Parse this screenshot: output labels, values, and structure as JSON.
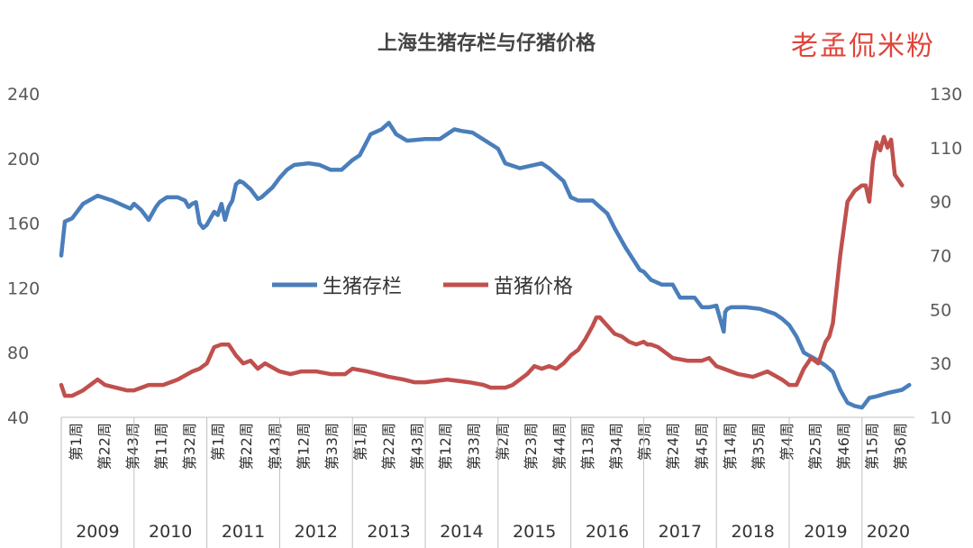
{
  "chart_data": {
    "type": "line",
    "title": "上海生猪存栏与仔猪价格",
    "watermark": "老孟侃米粉",
    "legend_position": "center",
    "y_left": {
      "min": 40,
      "max": 240,
      "ticks": [
        40,
        80,
        120,
        160,
        200,
        240
      ]
    },
    "y_right": {
      "min": 10,
      "max": 130,
      "ticks": [
        10,
        30,
        50,
        70,
        90,
        110,
        130
      ]
    },
    "x_tick_labels": [
      "第1周",
      "第22周",
      "第43周",
      "第11周",
      "第32周",
      "第1周",
      "第22周",
      "第43周",
      "第12周",
      "第33周",
      "第1周",
      "第22周",
      "第43周",
      "第12周",
      "第33周",
      "第2周",
      "第23周",
      "第44周",
      "第13周",
      "第34周",
      "第3周",
      "第24周",
      "第45周",
      "第14周",
      "第35周",
      "第4周",
      "第25周",
      "第46周",
      "第15周",
      "第36周"
    ],
    "years": [
      "2009",
      "2010",
      "2011",
      "2012",
      "2013",
      "2014",
      "2015",
      "2016",
      "2017",
      "2018",
      "2019",
      "2020"
    ],
    "x_unit": "year (fractional)",
    "series": [
      {
        "name": "生猪存栏",
        "color": "#4a7ebb",
        "axis": "left",
        "x": [
          2009.0,
          2009.05,
          2009.15,
          2009.3,
          2009.5,
          2009.7,
          2009.9,
          2009.95,
          2010.0,
          2010.1,
          2010.2,
          2010.3,
          2010.35,
          2010.45,
          2010.6,
          2010.7,
          2010.75,
          2010.8,
          2010.85,
          2010.9,
          2010.95,
          2011.0,
          2011.05,
          2011.1,
          2011.15,
          2011.2,
          2011.25,
          2011.3,
          2011.35,
          2011.4,
          2011.45,
          2011.5,
          2011.55,
          2011.6,
          2011.65,
          2011.7,
          2011.75,
          2011.8,
          2011.9,
          2012.0,
          2012.1,
          2012.2,
          2012.4,
          2012.55,
          2012.7,
          2012.85,
          2013.0,
          2013.1,
          2013.25,
          2013.4,
          2013.5,
          2013.6,
          2013.75,
          2014.0,
          2014.2,
          2014.4,
          2014.5,
          2014.65,
          2015.0,
          2015.1,
          2015.3,
          2015.6,
          2015.7,
          2015.9,
          2016.0,
          2016.1,
          2016.3,
          2016.4,
          2016.5,
          2016.6,
          2016.75,
          2016.95,
          2017.0,
          2017.1,
          2017.25,
          2017.4,
          2017.5,
          2017.7,
          2017.8,
          2017.9,
          2018.0,
          2018.1,
          2018.12,
          2018.15,
          2018.2,
          2018.4,
          2018.6,
          2018.8,
          2018.9,
          2019.0,
          2019.1,
          2019.2,
          2019.4,
          2019.5,
          2019.6,
          2019.7,
          2019.8,
          2019.9,
          2020.0,
          2020.1,
          2020.2,
          2020.35,
          2020.55,
          2020.65
        ],
        "y": [
          140,
          161,
          163,
          172,
          177,
          174,
          170,
          169,
          172,
          168,
          162,
          170,
          173,
          176,
          176,
          174,
          170,
          172,
          173,
          160,
          157,
          159,
          163,
          167,
          165,
          172,
          162,
          170,
          174,
          184,
          186,
          185,
          183,
          181,
          178,
          175,
          176,
          178,
          182,
          188,
          193,
          196,
          197,
          196,
          193,
          193,
          199,
          202,
          215,
          218,
          222,
          215,
          211,
          212,
          212,
          218,
          217,
          216,
          206,
          197,
          194,
          197,
          194,
          186,
          176,
          174,
          174,
          170,
          166,
          157,
          145,
          131,
          130,
          125,
          122,
          122,
          114,
          114,
          108,
          108,
          109,
          93,
          105,
          107,
          108,
          108,
          107,
          104,
          101,
          97,
          90,
          80,
          75,
          72,
          68,
          57,
          49,
          47,
          46,
          52,
          53,
          55,
          57,
          60
        ]
      },
      {
        "name": "苗猪价格",
        "color": "#c0504d",
        "axis": "right",
        "x": [
          2009.0,
          2009.05,
          2009.15,
          2009.3,
          2009.5,
          2009.6,
          2009.75,
          2009.9,
          2010.0,
          2010.2,
          2010.4,
          2010.6,
          2010.8,
          2010.9,
          2011.0,
          2011.1,
          2011.2,
          2011.3,
          2011.4,
          2011.5,
          2011.6,
          2011.7,
          2011.8,
          2012.0,
          2012.15,
          2012.3,
          2012.5,
          2012.7,
          2012.9,
          2013.0,
          2013.2,
          2013.5,
          2013.7,
          2013.85,
          2014.0,
          2014.3,
          2014.6,
          2014.8,
          2014.9,
          2015.0,
          2015.1,
          2015.2,
          2015.3,
          2015.4,
          2015.5,
          2015.6,
          2015.7,
          2015.8,
          2015.9,
          2016.0,
          2016.1,
          2016.2,
          2016.3,
          2016.35,
          2016.4,
          2016.5,
          2016.6,
          2016.7,
          2016.8,
          2016.9,
          2017.0,
          2017.05,
          2017.1,
          2017.2,
          2017.4,
          2017.6,
          2017.8,
          2017.9,
          2018.0,
          2018.1,
          2018.3,
          2018.5,
          2018.7,
          2018.9,
          2019.0,
          2019.05,
          2019.1,
          2019.2,
          2019.3,
          2019.4,
          2019.5,
          2019.55,
          2019.6,
          2019.7,
          2019.8,
          2019.9,
          2019.95,
          2020.0,
          2020.05,
          2020.1,
          2020.15,
          2020.2,
          2020.25,
          2020.3,
          2020.35,
          2020.4,
          2020.45,
          2020.55
        ],
        "y": [
          22,
          18,
          18,
          20,
          24,
          22,
          21,
          20,
          20,
          22,
          22,
          24,
          27,
          28,
          30,
          36,
          37,
          37,
          33,
          30,
          31,
          28,
          30,
          27,
          26,
          27,
          27,
          26,
          26,
          28,
          27,
          25,
          24,
          23,
          23,
          24,
          23,
          22,
          21,
          21,
          21,
          22,
          24,
          26,
          29,
          28,
          29,
          28,
          30,
          33,
          35,
          39,
          44,
          47,
          47,
          44,
          41,
          40,
          38,
          37,
          38,
          37,
          37,
          36,
          32,
          31,
          31,
          32,
          29,
          28,
          26,
          25,
          27,
          24,
          22,
          22,
          22,
          28,
          32,
          30,
          38,
          40,
          45,
          70,
          90,
          94,
          95,
          96,
          96,
          90,
          105,
          112,
          109,
          114,
          110,
          113,
          100,
          96
        ]
      }
    ]
  }
}
